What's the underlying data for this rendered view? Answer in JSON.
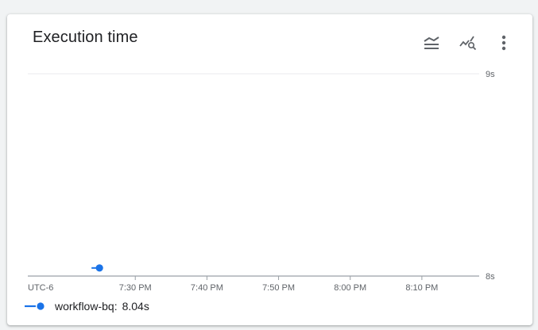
{
  "card": {
    "title": "Execution time",
    "icons": [
      "legend-toggle-icon",
      "explore-chart-icon",
      "more-options-icon"
    ]
  },
  "colors": {
    "series": "#1a73e8",
    "grid": "#e8eaed",
    "axis": "#9aa0a6",
    "text": "#202124",
    "muted": "#5f6368"
  },
  "chart_data": {
    "type": "line",
    "title": "Execution time",
    "timezone_label": "UTC-6",
    "x_ticks": [
      "7:30 PM",
      "7:40 PM",
      "7:50 PM",
      "8:00 PM",
      "8:10 PM"
    ],
    "y_ticks": [
      "9s",
      "8s"
    ],
    "ylim": [
      8,
      9
    ],
    "xlim": [
      "7:15 PM",
      "8:18 PM"
    ],
    "grid": true,
    "legend_position": "bottom-left",
    "series": [
      {
        "name": "workflow-bq",
        "points": [
          {
            "x": "7:25 PM",
            "y": 8.04
          }
        ],
        "color": "#1a73e8"
      }
    ]
  },
  "legend": {
    "series_name": "workflow-bq:",
    "series_value": "8.04s"
  }
}
